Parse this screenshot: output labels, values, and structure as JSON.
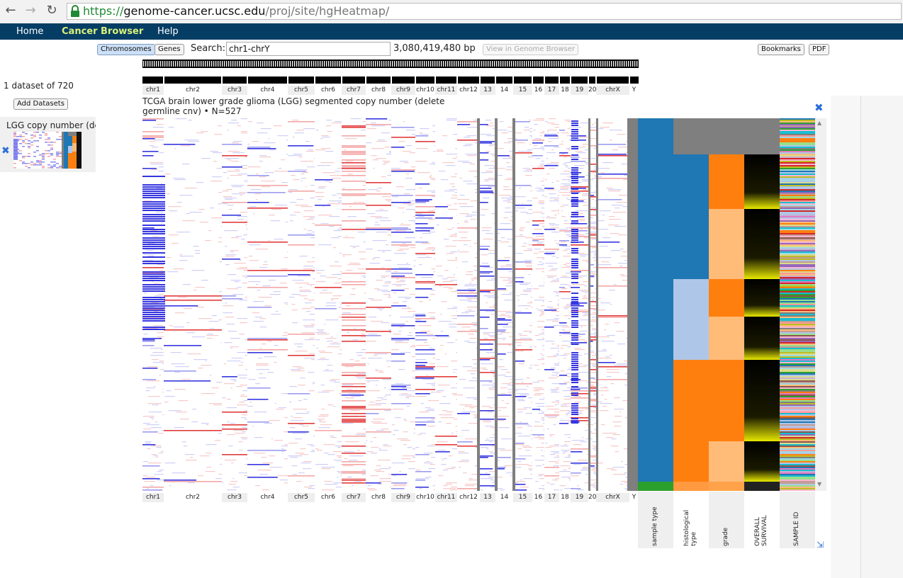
{
  "browser": {
    "url_scheme": "https://",
    "url_host": "genome-cancer.ucsc.edu",
    "url_path": "/proj/site/hgHeatmap/"
  },
  "nav": {
    "home": "Home",
    "cancer_browser": "Cancer Browser",
    "help": "Help"
  },
  "toolbar": {
    "chromosomes": "Chromosomes",
    "genes": "Genes",
    "search_label": "Search:",
    "search_value": "chr1-chrY",
    "bp_count": "3,080,419,480 bp",
    "view_genome_browser": "View in Genome Browser",
    "bookmarks": "Bookmarks",
    "pdf": "PDF"
  },
  "sidebar": {
    "dataset_count": "1 dataset of 720",
    "add_datasets": "Add Datasets",
    "dataset_label": "LGG copy number (delete germline cnv)"
  },
  "heatmap": {
    "title_line1": "TCGA brain lower grade glioma (LGG) segmented copy number (delete",
    "title_line2": "germline cnv) • N=527",
    "chromosomes": [
      "chr1",
      "chr2",
      "chr3",
      "chr4",
      "chr5",
      "chr6",
      "chr7",
      "chr8",
      "chr9",
      "chr10",
      "chr11",
      "chr12",
      "13",
      "14",
      "15",
      "16",
      "17",
      "18",
      "19",
      "20",
      "chrX",
      "Y"
    ],
    "features": [
      "sample type",
      "histological type",
      "grade",
      "OVERALL SURVIVAL",
      "SAMPLE ID"
    ],
    "colors": {
      "gain": "#e23b3b",
      "loss": "#3535e0",
      "sample_type": "#1f77b4",
      "sample_type_alt": "#2ca02c",
      "hist_grey": "#7f7f7f",
      "hist_blue": "#1f77b4",
      "hist_lightblue": "#aec7e8",
      "hist_orange": "#ff7f0e",
      "grade_orange": "#ff7f0e",
      "grade_light": "#ffbb78"
    }
  }
}
